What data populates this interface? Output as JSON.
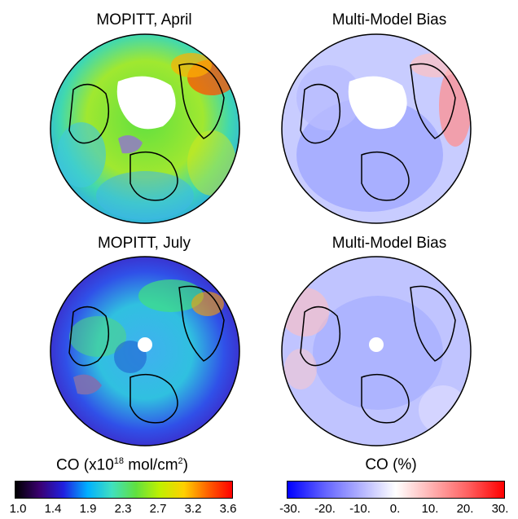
{
  "panels": [
    {
      "title": "MOPITT, April",
      "type": "co"
    },
    {
      "title": "Multi-Model Bias",
      "type": "bias"
    },
    {
      "title": "MOPITT, July",
      "type": "co"
    },
    {
      "title": "Multi-Model Bias",
      "type": "bias"
    }
  ],
  "colorbars": {
    "co": {
      "label_prefix": "CO (x10",
      "label_exp": "18",
      "label_suffix": " mol/cm",
      "label_exp2": "2",
      "label_close": ")",
      "ticks": [
        "1.0",
        "1.4",
        "1.9",
        "2.3",
        "2.7",
        "3.2",
        "3.6"
      ],
      "colors": [
        "#000000",
        "#3a0070",
        "#2020e0",
        "#00b0ff",
        "#40e0c0",
        "#60e040",
        "#c0f000",
        "#ffd000",
        "#ff6000",
        "#ff0000"
      ]
    },
    "bias": {
      "label": "CO (%)",
      "ticks": [
        "-30.",
        "-20.",
        "-10.",
        "0.",
        "10.",
        "20.",
        "30."
      ],
      "colors": [
        "#0000ff",
        "#6060ff",
        "#b0b0ff",
        "#ffffff",
        "#ffb0b0",
        "#ff6060",
        "#ff0000"
      ]
    }
  }
}
